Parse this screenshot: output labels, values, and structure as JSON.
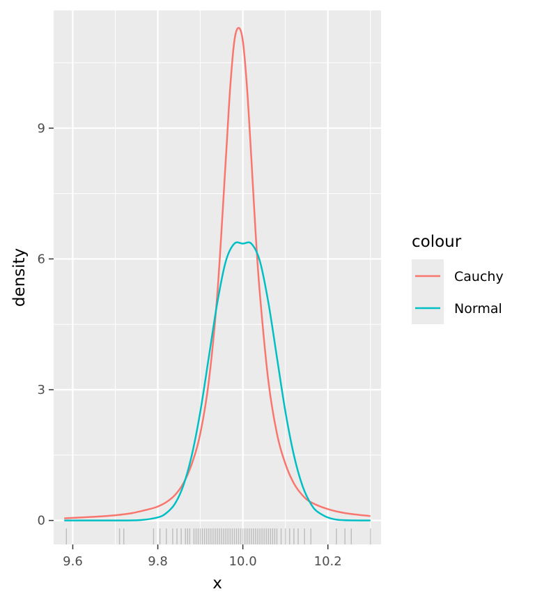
{
  "chart_data": {
    "type": "line",
    "title": "",
    "xlabel": "x",
    "ylabel": "density",
    "xlim": [
      9.555,
      10.325
    ],
    "ylim": [
      -0.55,
      11.7
    ],
    "x_ticks": [
      9.6,
      9.8,
      10.0,
      10.2
    ],
    "x_tick_labels": [
      "9.6",
      "9.8",
      "10.0",
      "10.2"
    ],
    "y_ticks": [
      0,
      3,
      6,
      9
    ],
    "y_tick_labels": [
      "0",
      "3",
      "6",
      "9"
    ],
    "grid": true,
    "legend": {
      "title": "colour",
      "position": "right",
      "entries": [
        {
          "label": "Cauchy",
          "color": "#F8766D"
        },
        {
          "label": "Normal",
          "color": "#00BFC4"
        }
      ]
    },
    "series": [
      {
        "name": "Cauchy",
        "color": "#F8766D",
        "x": [
          9.58,
          9.62,
          9.66,
          9.7,
          9.74,
          9.78,
          9.8,
          9.82,
          9.84,
          9.86,
          9.88,
          9.9,
          9.92,
          9.94,
          9.96,
          9.97,
          9.98,
          9.99,
          10.0,
          10.01,
          10.02,
          10.03,
          10.04,
          10.06,
          10.08,
          10.1,
          10.12,
          10.14,
          10.16,
          10.2,
          10.24,
          10.3
        ],
        "y": [
          0.05,
          0.07,
          0.09,
          0.12,
          0.17,
          0.26,
          0.32,
          0.42,
          0.58,
          0.85,
          1.3,
          2.0,
          3.2,
          5.2,
          8.3,
          9.9,
          11.0,
          11.3,
          11.0,
          9.9,
          8.3,
          6.6,
          5.2,
          3.2,
          2.0,
          1.3,
          0.85,
          0.58,
          0.42,
          0.26,
          0.17,
          0.1
        ]
      },
      {
        "name": "Normal",
        "color": "#00BFC4",
        "x": [
          9.58,
          9.7,
          9.76,
          9.8,
          9.82,
          9.84,
          9.86,
          9.88,
          9.9,
          9.92,
          9.94,
          9.96,
          9.98,
          10.0,
          10.02,
          10.04,
          10.06,
          10.08,
          10.1,
          10.12,
          10.14,
          10.16,
          10.18,
          10.22,
          10.3
        ],
        "y": [
          0.0,
          0.0,
          0.01,
          0.07,
          0.17,
          0.38,
          0.8,
          1.5,
          2.5,
          3.75,
          5.0,
          5.95,
          6.35,
          6.35,
          6.35,
          5.95,
          5.0,
          3.75,
          2.5,
          1.5,
          0.8,
          0.38,
          0.17,
          0.02,
          0.0
        ]
      }
    ],
    "rug": {
      "color": "#000000",
      "x": [
        9.585,
        9.71,
        9.72,
        9.79,
        9.805,
        9.82,
        9.835,
        9.845,
        9.855,
        9.865,
        9.87,
        9.875,
        9.885,
        9.89,
        9.895,
        9.9,
        9.905,
        9.91,
        9.915,
        9.92,
        9.925,
        9.93,
        9.935,
        9.94,
        9.945,
        9.95,
        9.955,
        9.96,
        9.965,
        9.97,
        9.975,
        9.98,
        9.985,
        9.99,
        9.995,
        10.0,
        10.005,
        10.01,
        10.015,
        10.02,
        10.025,
        10.03,
        10.035,
        10.04,
        10.045,
        10.05,
        10.055,
        10.06,
        10.065,
        10.07,
        10.075,
        10.08,
        10.09,
        10.1,
        10.11,
        10.12,
        10.13,
        10.145,
        10.16,
        10.22,
        10.24,
        10.255,
        10.3
      ]
    }
  }
}
